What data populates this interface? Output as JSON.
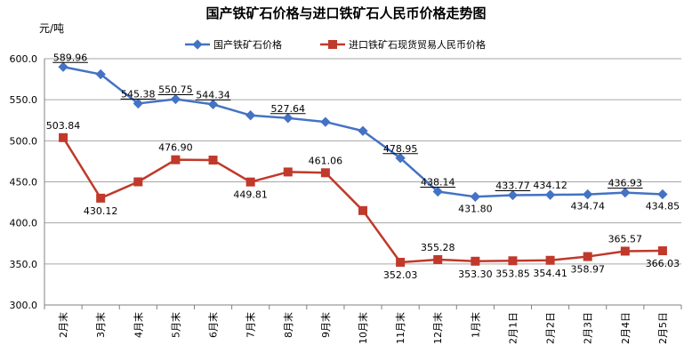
{
  "chart_data": {
    "type": "line",
    "title": "国产铁矿石价格与进口铁矿石人民币价格走势图",
    "ylabel": "元/吨",
    "xlabel": "",
    "ylim": [
      300,
      600
    ],
    "yticks": [
      "300.0",
      "350.0",
      "400.0",
      "450.0",
      "500.0",
      "550.0",
      "600.0"
    ],
    "grid": true,
    "legend_position": "top",
    "categories": [
      "2月末",
      "3月末",
      "4月末",
      "5月末",
      "6月末",
      "7月末",
      "8月末",
      "9月末",
      "10月末",
      "11月末",
      "12月末",
      "1月末",
      "2月1日",
      "2月2日",
      "2月3日",
      "2月4日",
      "2月5日"
    ],
    "series": [
      {
        "name": "国产铁矿石价格",
        "color": "#4472c4",
        "marker": "diamond",
        "values": [
          589.96,
          581,
          545.38,
          550.75,
          544.34,
          531,
          527.64,
          523,
          512,
          478.95,
          438.14,
          431.8,
          433.77,
          434.12,
          434.74,
          436.93,
          434.85
        ],
        "labels": [
          "589.96",
          null,
          "545.38",
          "550.75",
          "544.34",
          null,
          "527.64",
          null,
          null,
          "478.95",
          "438.14",
          "431.80",
          "433.77",
          "434.12",
          "434.74",
          "436.93",
          "434.85"
        ]
      },
      {
        "name": "进口铁矿石现货贸易人民币价格",
        "color": "#c0392b",
        "marker": "square",
        "values": [
          503.84,
          430.12,
          450,
          476.9,
          476.5,
          449.81,
          462,
          461.06,
          415,
          352.03,
          355.28,
          353.3,
          353.85,
          354.41,
          358.97,
          365.57,
          366.03
        ],
        "labels": [
          "503.84",
          "430.12",
          null,
          "476.90",
          null,
          "449.81",
          null,
          "461.06",
          null,
          "352.03",
          "355.28",
          "353.30",
          "353.85",
          "354.41",
          "358.97",
          "365.57",
          "366.03"
        ]
      }
    ]
  }
}
